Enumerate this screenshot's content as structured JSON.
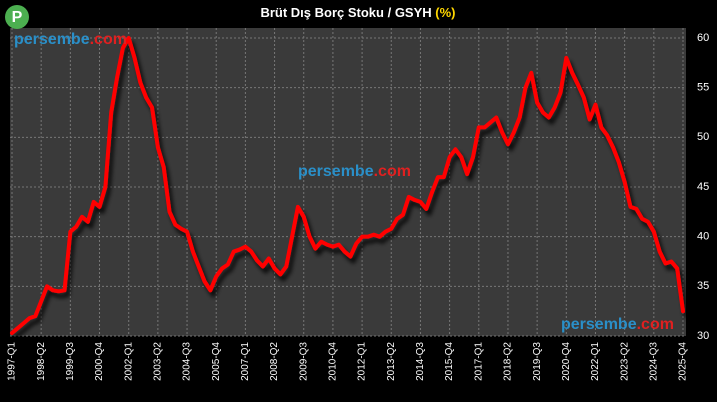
{
  "chart_data": {
    "type": "line",
    "title": "Brüt Dış Borç Stoku / GSYH",
    "title_unit": "(%)",
    "logo": "P",
    "watermark": [
      "persembe",
      ".com"
    ],
    "categories": [
      "1997-Q1",
      null,
      null,
      null,
      null,
      "1998-Q2",
      null,
      null,
      null,
      null,
      "1999-Q3",
      null,
      null,
      null,
      null,
      "2000-Q4",
      null,
      null,
      null,
      null,
      "2002-Q1",
      null,
      null,
      null,
      null,
      "2003-Q2",
      null,
      null,
      null,
      null,
      "2004-Q3",
      null,
      null,
      null,
      null,
      "2005-Q4",
      null,
      null,
      null,
      null,
      "2007-Q1",
      null,
      null,
      null,
      null,
      "2008-Q2",
      null,
      null,
      null,
      null,
      "2009-Q3",
      null,
      null,
      null,
      null,
      "2010-Q4",
      null,
      null,
      null,
      null,
      "2012-Q1",
      null,
      null,
      null,
      null,
      "2013-Q2",
      null,
      null,
      null,
      null,
      "2014-Q3",
      null,
      null,
      null,
      null,
      "2015-Q4",
      null,
      null,
      null,
      null,
      "2017-Q1",
      null,
      null,
      null,
      null,
      "2018-Q2",
      null,
      null,
      null,
      null,
      "2019-Q3",
      null,
      null,
      null,
      null,
      "2020-Q4",
      null,
      null,
      null,
      null,
      "2022-Q1",
      null,
      null,
      null,
      null,
      "2023-Q2",
      null,
      null,
      null,
      null,
      "2024-Q3",
      null,
      null,
      null,
      null,
      "2025-Q4"
    ],
    "values": [
      30.3,
      30.8,
      31.3,
      31.8,
      32,
      33.5,
      35,
      34.6,
      34.5,
      34.6,
      40.5,
      41,
      42,
      41.5,
      43.5,
      43,
      45,
      52.5,
      56,
      59,
      60,
      58,
      55.5,
      54,
      53,
      49,
      47,
      42.5,
      41.2,
      40.8,
      40.5,
      38.5,
      37,
      35.5,
      34.6,
      36,
      36.8,
      37.2,
      38.5,
      38.7,
      39,
      38.5,
      37.6,
      37,
      37.8,
      36.8,
      36.2,
      37,
      40,
      43,
      42,
      40,
      38.8,
      39.5,
      39.2,
      39,
      39.2,
      38.5,
      38,
      39.3,
      40,
      40,
      40.2,
      40,
      40.5,
      40.8,
      41.8,
      42.2,
      44,
      43.7,
      43.5,
      42.8,
      44.5,
      46,
      46,
      48,
      48.8,
      48,
      46.3,
      48,
      51,
      51,
      51.5,
      52,
      50.5,
      49.3,
      50.5,
      52,
      55,
      56.5,
      53.5,
      52.5,
      52,
      53,
      54.5,
      58,
      56.5,
      55.3,
      54,
      51.8,
      53.3,
      51,
      50.2,
      49,
      47.5,
      45.5,
      43,
      42.8,
      41.8,
      41.5,
      40.5,
      38.5,
      37.3,
      37.5,
      36.8,
      32.5
    ],
    "color": "#ff0000",
    "ylim": [
      30,
      60
    ],
    "yticks": [
      30,
      35,
      40,
      45,
      50,
      55,
      60
    ],
    "grid": true
  }
}
